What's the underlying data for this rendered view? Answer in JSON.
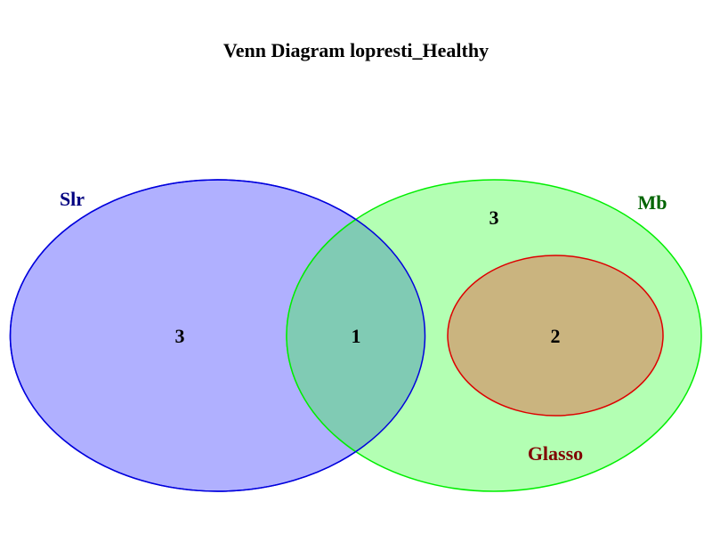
{
  "title": "Venn Diagram lopresti_Healthy",
  "sets": [
    {
      "key": "slr",
      "name": "Slr",
      "fill": "#b0b0ff",
      "stroke": "#0000dd",
      "label_color": "#000080"
    },
    {
      "key": "mb",
      "name": "Mb",
      "fill": "#b3ffb3",
      "stroke": "#00ee00",
      "label_color": "#006400"
    },
    {
      "key": "glasso",
      "name": "Glasso",
      "fill": "#cab47f",
      "stroke": "#dd0000",
      "label_color": "#800000"
    }
  ],
  "regions": {
    "slr_only": "3",
    "slr_mb": "1",
    "mb_only": "3",
    "mb_glasso": "2"
  },
  "overlap_color": "#80cbb4"
}
